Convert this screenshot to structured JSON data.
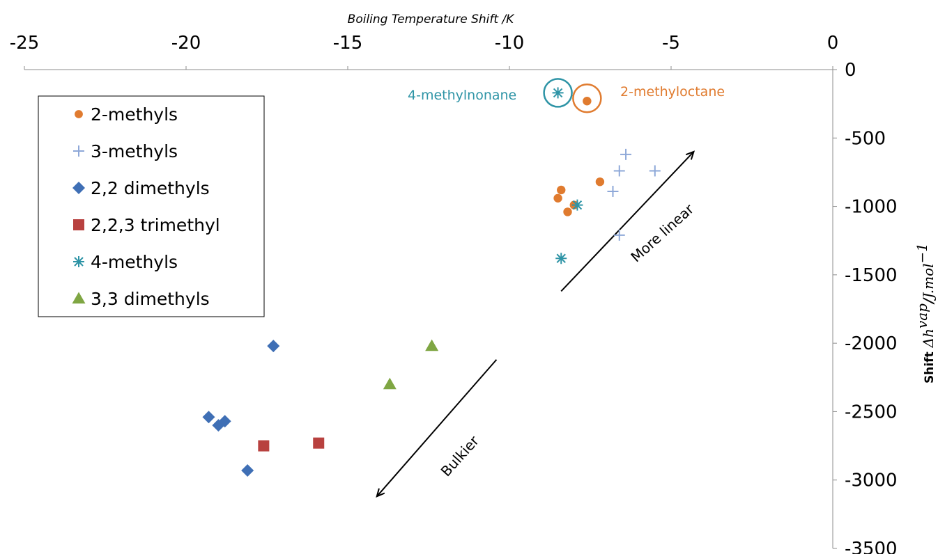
{
  "chart_data": {
    "type": "scatter",
    "xlabel": "Boiling Temperature Shift /K",
    "ylabel": {
      "bold": "Shift",
      "math": "Δh",
      "math_sup": "vap",
      "slash": "/",
      "unit": "J.mol",
      "unit_sup": "−1"
    },
    "xlim": [
      -25,
      0
    ],
    "ylim": [
      -3500,
      0
    ],
    "xaxis_position": "top",
    "yaxis_position": "right",
    "grid": false,
    "legend_position": "top-left",
    "x_ticks": [
      -25,
      -20,
      -15,
      -10,
      -5,
      0
    ],
    "y_ticks": [
      0,
      -500,
      -1000,
      -1500,
      -2000,
      -2500,
      -3000,
      -3500
    ],
    "series": [
      {
        "name": "2-methyls",
        "marker": "circle",
        "color": "#E07B2F",
        "points": [
          [
            -7.6,
            -230
          ],
          [
            -7.2,
            -820
          ],
          [
            -8.4,
            -880
          ],
          [
            -8.5,
            -940
          ],
          [
            -8.2,
            -1040
          ],
          [
            -8.0,
            -990
          ]
        ]
      },
      {
        "name": "3-methyls",
        "marker": "plus",
        "color": "#8EA8D8",
        "points": [
          [
            -6.4,
            -620
          ],
          [
            -6.6,
            -740
          ],
          [
            -5.5,
            -740
          ],
          [
            -6.8,
            -890
          ],
          [
            -6.6,
            -1210
          ]
        ]
      },
      {
        "name": "2,2 dimethyls",
        "marker": "diamond",
        "color": "#3F6FB5",
        "points": [
          [
            -17.3,
            -2020
          ],
          [
            -19.3,
            -2540
          ],
          [
            -19.0,
            -2600
          ],
          [
            -18.8,
            -2570
          ],
          [
            -18.1,
            -2930
          ]
        ]
      },
      {
        "name": "2,2,3 trimethyl",
        "marker": "square",
        "color": "#B8413F",
        "points": [
          [
            -17.6,
            -2750
          ],
          [
            -15.9,
            -2730
          ]
        ]
      },
      {
        "name": "4-methyls",
        "marker": "asterisk",
        "color": "#2E94A6",
        "points": [
          [
            -8.5,
            -170
          ],
          [
            -8.4,
            -1380
          ],
          [
            -7.9,
            -990
          ]
        ]
      },
      {
        "name": "3,3 dimethyls",
        "marker": "triangle",
        "color": "#7FA643",
        "points": [
          [
            -13.7,
            -2300
          ],
          [
            -12.4,
            -2020
          ]
        ]
      }
    ],
    "annotations": [
      {
        "text": "4-methylnonane",
        "color": "#2E94A6"
      },
      {
        "text": "2-methyloctane",
        "color": "#E07B2F"
      },
      {
        "text": "More linear",
        "color": "#000000"
      },
      {
        "text": "Bulkier",
        "color": "#000000"
      }
    ],
    "highlight_circles": [
      {
        "x": -8.5,
        "y": -170,
        "color": "#2E94A6"
      },
      {
        "x": -7.6,
        "y": -210,
        "color": "#E07B2F"
      }
    ],
    "arrows": [
      {
        "from": [
          -8.4,
          -1620
        ],
        "to": [
          -4.3,
          -600
        ]
      },
      {
        "from": [
          -10.4,
          -2120
        ],
        "to": [
          -14.1,
          -3120
        ]
      }
    ]
  }
}
